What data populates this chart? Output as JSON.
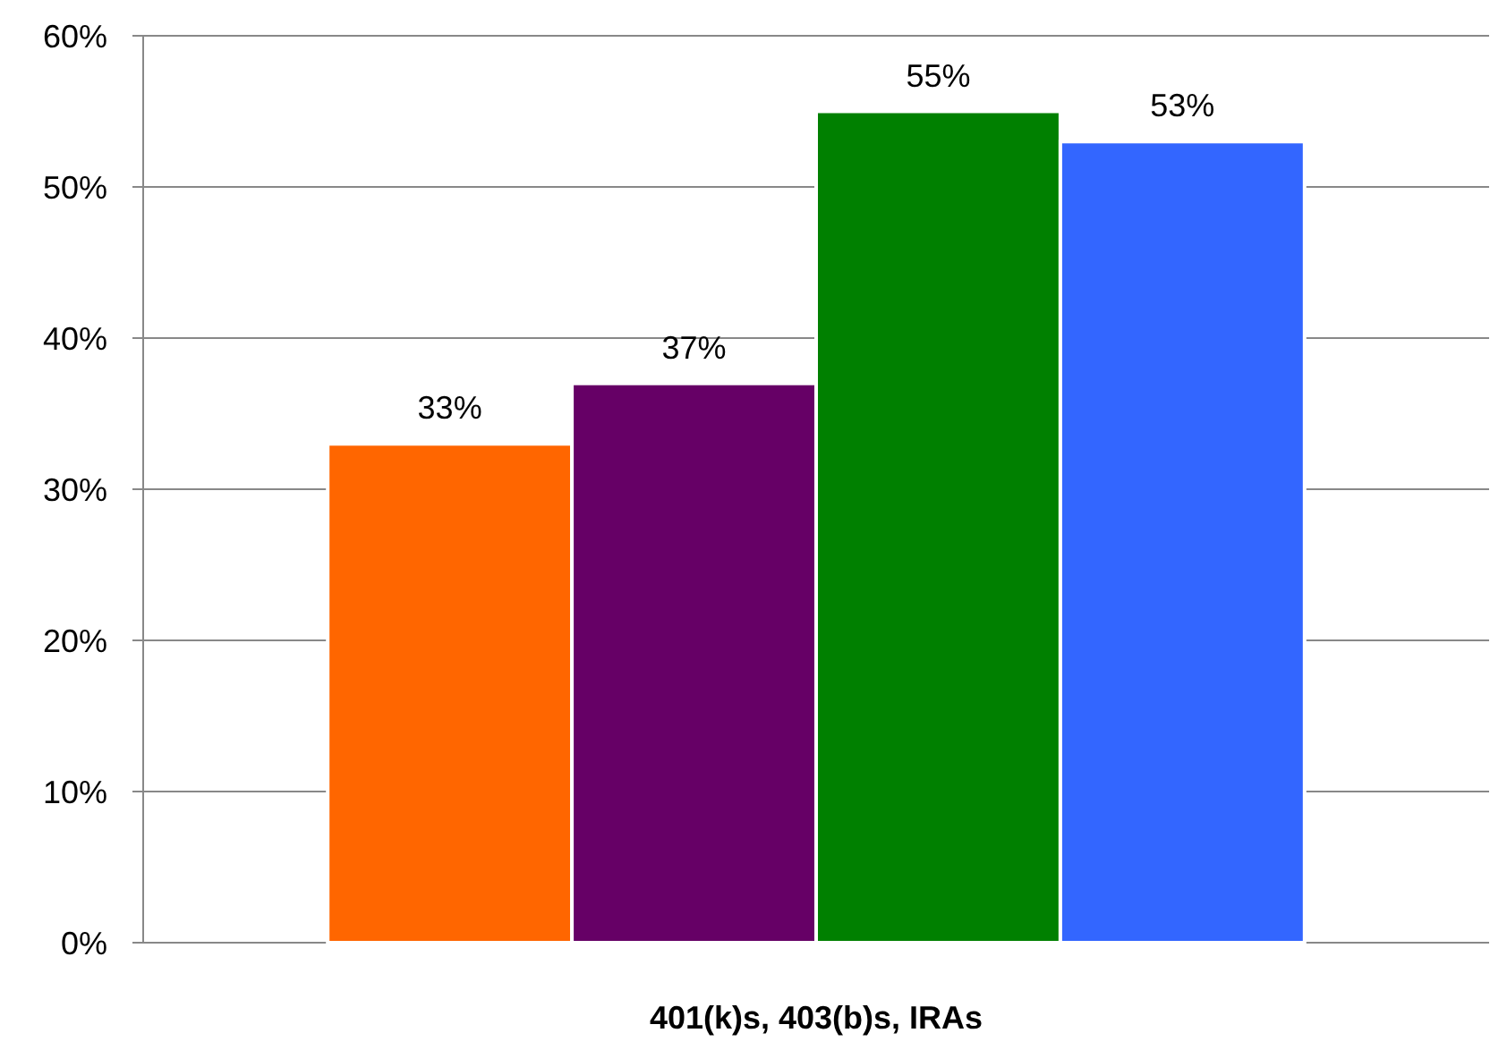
{
  "chart_data": {
    "type": "bar",
    "categories": [
      "401(k)s, 403(b)s, IRAs"
    ],
    "series": [
      {
        "color": "#ff6600",
        "values": [
          33
        ],
        "value_labels": [
          "33%"
        ]
      },
      {
        "color": "#660066",
        "values": [
          37
        ],
        "value_labels": [
          "37%"
        ]
      },
      {
        "color": "#008000",
        "values": [
          55
        ],
        "value_labels": [
          "55%"
        ]
      },
      {
        "color": "#3366ff",
        "values": [
          53
        ],
        "value_labels": [
          "53%"
        ]
      }
    ],
    "ylim": [
      0,
      60
    ],
    "yticks": [
      {
        "value": 0,
        "label": "0%"
      },
      {
        "value": 10,
        "label": "10%"
      },
      {
        "value": 20,
        "label": "20%"
      },
      {
        "value": 30,
        "label": "30%"
      },
      {
        "value": 40,
        "label": "40%"
      },
      {
        "value": 50,
        "label": "50%"
      },
      {
        "value": 60,
        "label": "60%"
      }
    ],
    "grid": "y"
  }
}
